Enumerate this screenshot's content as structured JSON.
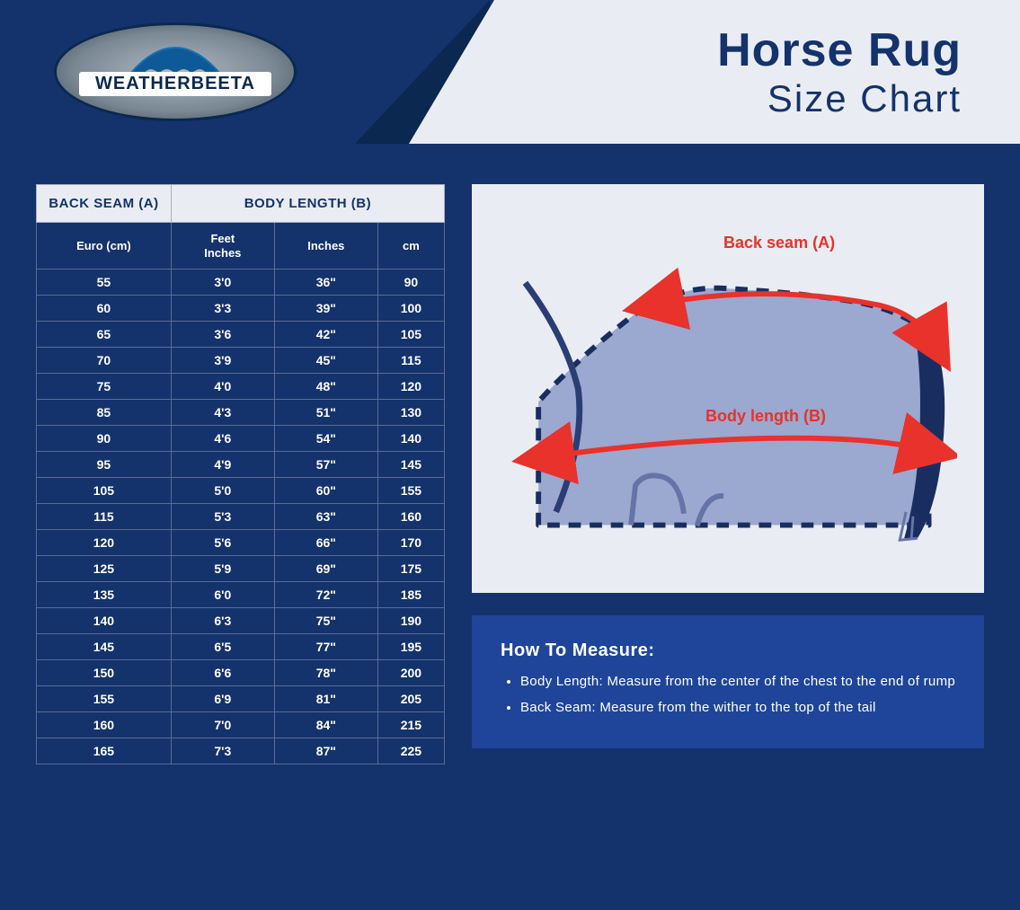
{
  "brand": {
    "name": "WEATHERBEETA"
  },
  "title": {
    "line1": "Horse Rug",
    "line2": "Size Chart"
  },
  "colors": {
    "page_bg": "#14326c",
    "light_panel": "#e9edf3",
    "accent_red": "#e8322b",
    "howto_bg": "#1e4599",
    "border": "#5a6d94",
    "header_border": "#a9b0bd",
    "horse_fill": "#9ba8cf",
    "horse_line": "#2a3d74",
    "dash": "#1a2d60"
  },
  "table": {
    "group_headers": {
      "a": "BACK SEAM (A)",
      "b": "BODY LENGTH (B)"
    },
    "columns": [
      "Euro (cm)",
      "Feet\nInches",
      "Inches",
      "cm"
    ],
    "rows": [
      [
        "55",
        "3'0",
        "36\"",
        "90"
      ],
      [
        "60",
        "3'3",
        "39\"",
        "100"
      ],
      [
        "65",
        "3'6",
        "42\"",
        "105"
      ],
      [
        "70",
        "3'9",
        "45\"",
        "115"
      ],
      [
        "75",
        "4'0",
        "48\"",
        "120"
      ],
      [
        "85",
        "4'3",
        "51\"",
        "130"
      ],
      [
        "90",
        "4'6",
        "54\"",
        "140"
      ],
      [
        "95",
        "4'9",
        "57\"",
        "145"
      ],
      [
        "105",
        "5'0",
        "60\"",
        "155"
      ],
      [
        "115",
        "5'3",
        "63\"",
        "160"
      ],
      [
        "120",
        "5'6",
        "66\"",
        "170"
      ],
      [
        "125",
        "5'9",
        "69\"",
        "175"
      ],
      [
        "135",
        "6'0",
        "72\"",
        "185"
      ],
      [
        "140",
        "6'3",
        "75\"",
        "190"
      ],
      [
        "145",
        "6'5",
        "77\"",
        "195"
      ],
      [
        "150",
        "6'6",
        "78\"",
        "200"
      ],
      [
        "155",
        "6'9",
        "81\"",
        "205"
      ],
      [
        "160",
        "7'0",
        "84\"",
        "215"
      ],
      [
        "165",
        "7'3",
        "87\"",
        "225"
      ]
    ]
  },
  "diagram": {
    "label_a": "Back seam (A)",
    "label_b": "Body length (B)"
  },
  "howto": {
    "title": "How To Measure:",
    "items": [
      "Body Length: Measure from the center of the chest to the end of rump",
      "Back Seam: Measure from the wither to the top of the tail"
    ]
  }
}
